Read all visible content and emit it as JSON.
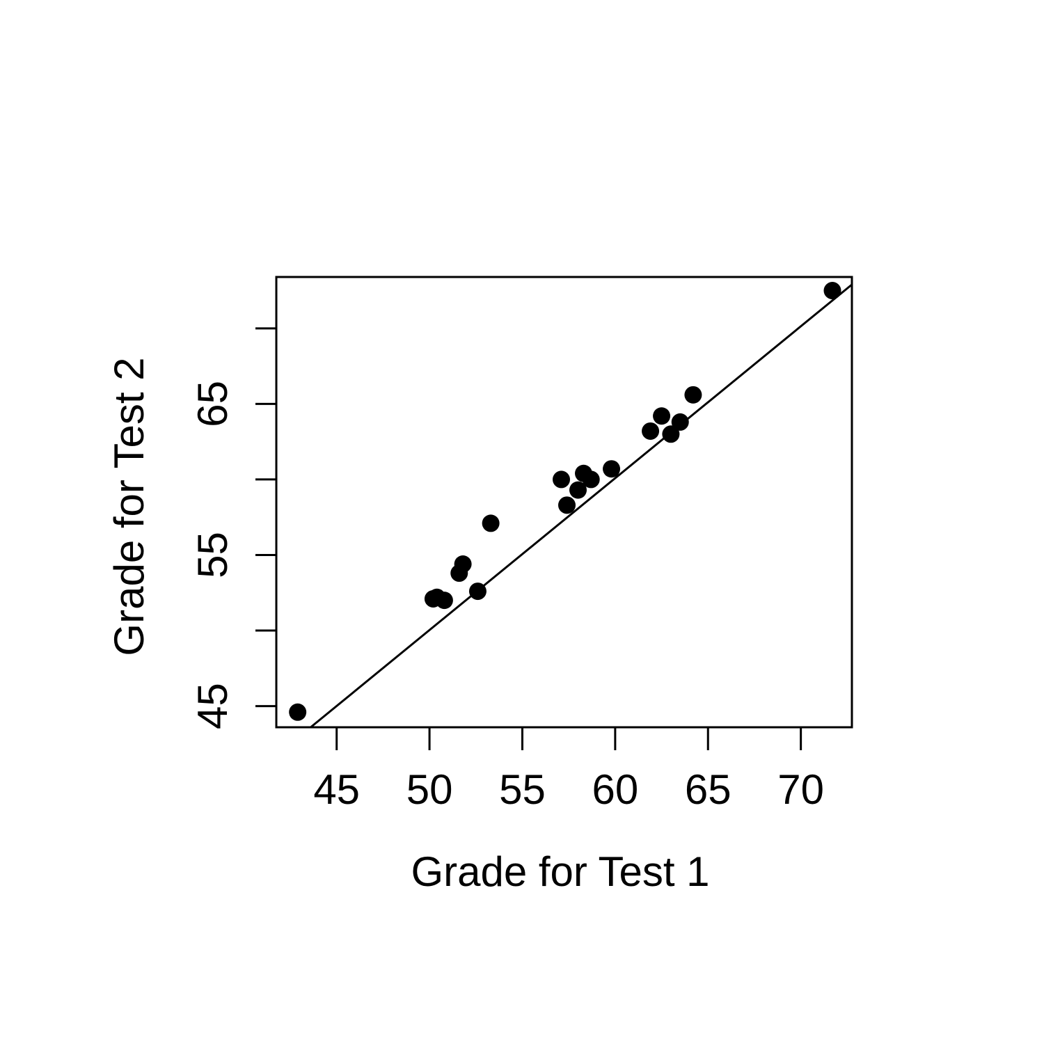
{
  "chart_data": {
    "type": "scatter",
    "title": "",
    "xlabel": "Grade for Test 1",
    "ylabel": "Grade for Test 2",
    "xlim": [
      41.75,
      72.75
    ],
    "ylim": [
      43.6,
      73.4
    ],
    "x_ticks": [
      45,
      50,
      55,
      60,
      65,
      70
    ],
    "x_tick_labels": [
      "45",
      "50",
      "55",
      "60",
      "65",
      "70"
    ],
    "y_ticks": [
      45,
      50,
      55,
      60,
      65,
      70
    ],
    "y_tick_labels": [
      "45",
      "",
      "55",
      "",
      "65",
      ""
    ],
    "grid": false,
    "point_color": "#000000",
    "line_color": "#000000",
    "points": [
      {
        "x": 42.9,
        "y": 44.6
      },
      {
        "x": 50.2,
        "y": 52.1
      },
      {
        "x": 50.4,
        "y": 52.2
      },
      {
        "x": 50.8,
        "y": 52.0
      },
      {
        "x": 51.6,
        "y": 53.8
      },
      {
        "x": 51.8,
        "y": 54.4
      },
      {
        "x": 52.6,
        "y": 52.6
      },
      {
        "x": 53.3,
        "y": 57.1
      },
      {
        "x": 57.1,
        "y": 60.0
      },
      {
        "x": 57.4,
        "y": 58.3
      },
      {
        "x": 58.0,
        "y": 59.3
      },
      {
        "x": 58.3,
        "y": 60.4
      },
      {
        "x": 58.7,
        "y": 60.0
      },
      {
        "x": 59.8,
        "y": 60.7
      },
      {
        "x": 61.9,
        "y": 63.2
      },
      {
        "x": 62.5,
        "y": 64.2
      },
      {
        "x": 63.0,
        "y": 63.0
      },
      {
        "x": 63.5,
        "y": 63.8
      },
      {
        "x": 64.2,
        "y": 65.6
      },
      {
        "x": 71.7,
        "y": 72.5
      }
    ],
    "fit_line": {
      "x": [
        43.6,
        72.75
      ],
      "y": [
        43.6,
        72.9
      ]
    }
  }
}
